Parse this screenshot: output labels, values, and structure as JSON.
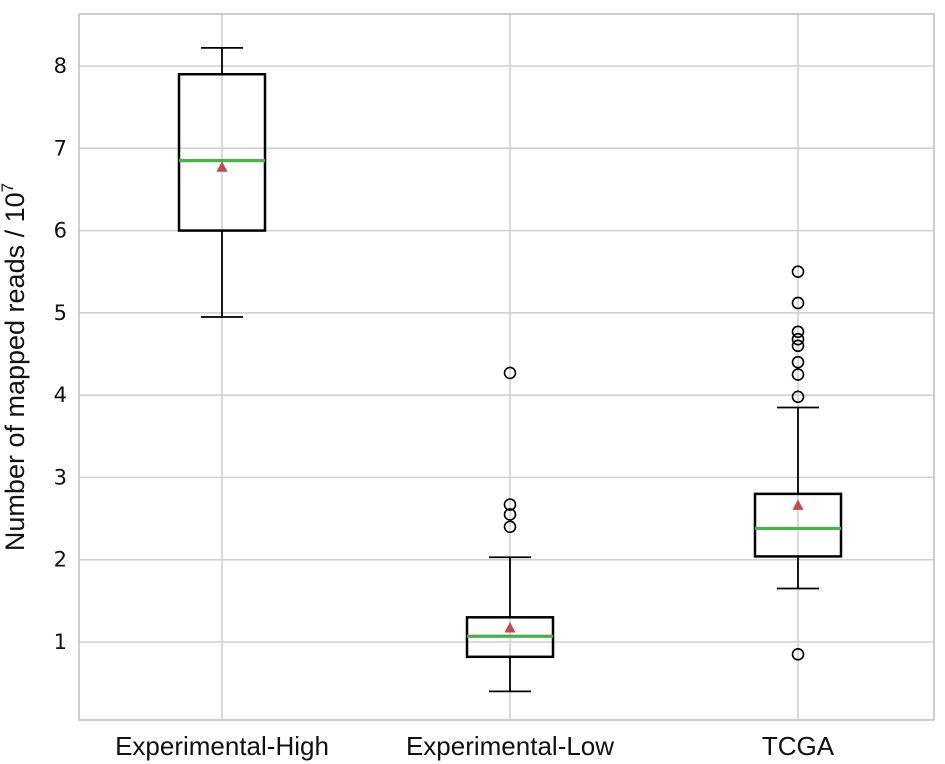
{
  "chart_data": {
    "type": "box",
    "title": "",
    "xlabel": "",
    "ylabel": "Number of mapped reads / 10",
    "ylabel_exponent": "7",
    "ylim": [
      0.3,
      8.6
    ],
    "yticks": [
      1,
      2,
      3,
      4,
      5,
      6,
      7,
      8
    ],
    "grid": true,
    "categories": [
      "Experimental-High",
      "Experimental-Low",
      "TCGA"
    ],
    "boxes": [
      {
        "name": "Experimental-High",
        "whisker_low": 4.95,
        "q1": 6.0,
        "median": 6.85,
        "q3": 7.9,
        "whisker_high": 8.22,
        "mean": 6.77,
        "fliers": []
      },
      {
        "name": "Experimental-Low",
        "whisker_low": 0.4,
        "q1": 0.82,
        "median": 1.07,
        "q3": 1.3,
        "whisker_high": 2.03,
        "mean": 1.17,
        "fliers": [
          2.4,
          2.55,
          2.67,
          4.27
        ]
      },
      {
        "name": "TCGA",
        "whisker_low": 1.65,
        "q1": 2.04,
        "median": 2.38,
        "q3": 2.8,
        "whisker_high": 3.85,
        "mean": 2.66,
        "fliers": [
          0.85,
          3.98,
          4.25,
          4.4,
          4.6,
          4.68,
          4.77,
          5.12,
          5.5
        ]
      }
    ],
    "colors": {
      "median": "#4caf50",
      "mean": "#c9464a",
      "box": "#000000",
      "grid": "#cfcfcf"
    }
  }
}
